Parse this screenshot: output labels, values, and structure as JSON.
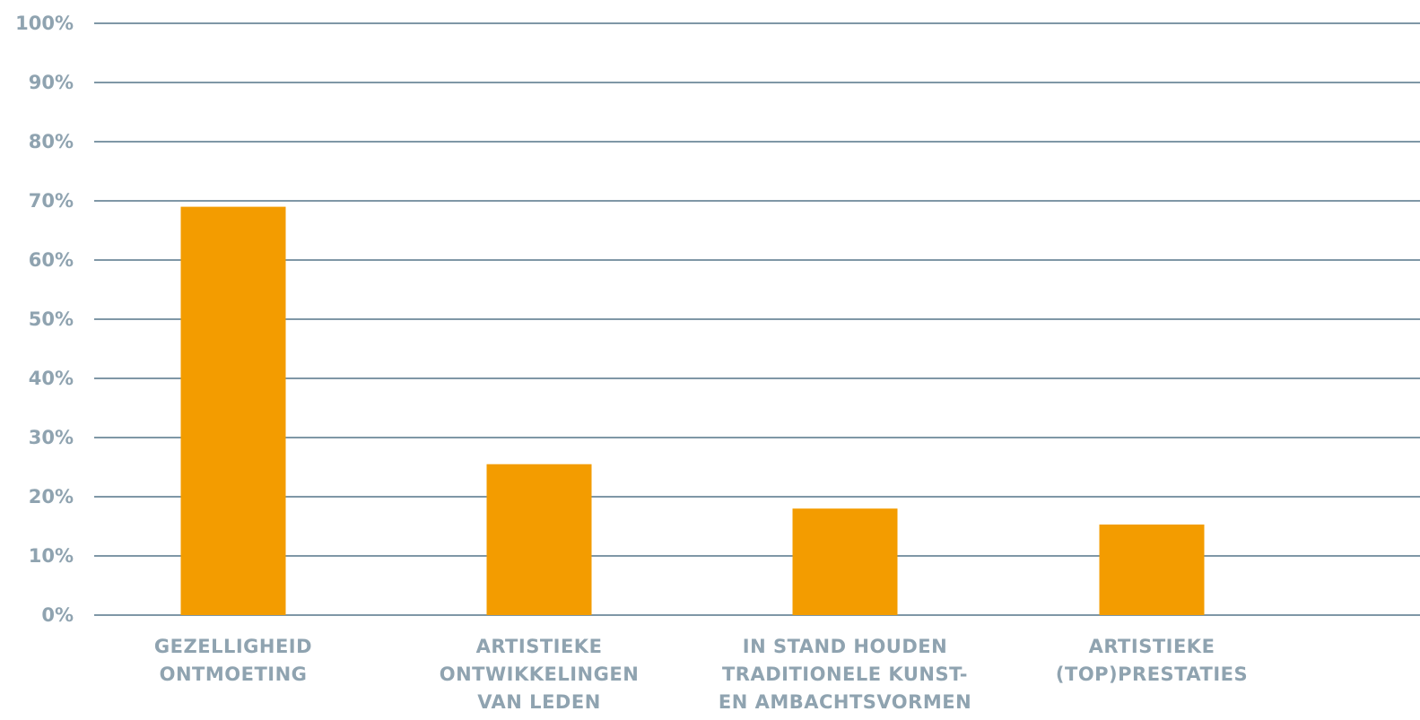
{
  "chart_data": {
    "type": "bar",
    "categories": [
      [
        "GEZELLIGHEID",
        "ONTMOETING"
      ],
      [
        "ARTISTIEKE",
        "ONTWIKKELINGEN",
        "VAN LEDEN"
      ],
      [
        "IN STAND HOUDEN",
        "TRADITIONELE KUNST-",
        "EN AMBACHTSVORMEN"
      ],
      [
        "ARTISTIEKE",
        "(TOP)PRESTATIES"
      ]
    ],
    "values": [
      69,
      25.5,
      18,
      15.3
    ],
    "yticks": [
      "0%",
      "10%",
      "20%",
      "30%",
      "40%",
      "50%",
      "60%",
      "70%",
      "80%",
      "90%",
      "100%"
    ],
    "ylim": [
      0,
      100
    ],
    "title": "",
    "xlabel": "",
    "ylabel": "",
    "grid": true,
    "colors": {
      "bar": "#f39c00",
      "grid": "#7f97a6",
      "text": "#8fa3b0"
    }
  }
}
